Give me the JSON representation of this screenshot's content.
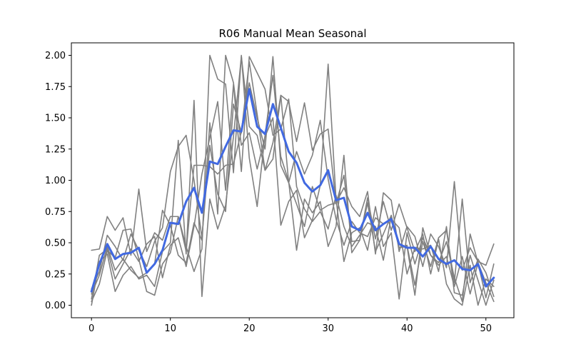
{
  "chart_data": {
    "type": "line",
    "title": "R06 Manual Mean Seasonal",
    "xlabel": "",
    "ylabel": "",
    "xlim": [
      -2.55,
      53.55
    ],
    "ylim": [
      -0.1,
      2.1
    ],
    "xticks": [
      0,
      10,
      20,
      30,
      40,
      50
    ],
    "xtick_labels": [
      "0",
      "10",
      "20",
      "30",
      "40",
      "50"
    ],
    "yticks": [
      0.0,
      0.25,
      0.5,
      0.75,
      1.0,
      1.25,
      1.5,
      1.75,
      2.0
    ],
    "ytick_labels": [
      "0.00",
      "0.25",
      "0.50",
      "0.75",
      "1.00",
      "1.25",
      "1.50",
      "1.75",
      "2.00"
    ],
    "grid": false,
    "legend": "none",
    "colors": {
      "background": "#ffffff",
      "individual": "#808080",
      "mean": "#4169e1"
    },
    "x": [
      0,
      1,
      2,
      3,
      4,
      5,
      6,
      7,
      8,
      9,
      10,
      11,
      12,
      13,
      14,
      15,
      16,
      17,
      18,
      19,
      20,
      21,
      22,
      23,
      24,
      25,
      26,
      27,
      28,
      29,
      30,
      31,
      32,
      33,
      34,
      35,
      36,
      37,
      38,
      39,
      40,
      41,
      42,
      43,
      44,
      45,
      46,
      47,
      48,
      49,
      50,
      51
    ],
    "series": [
      {
        "role": "individual",
        "values": [
          0.44,
          0.45,
          0.71,
          0.6,
          0.7,
          0.4,
          0.93,
          0.43,
          0.58,
          0.52,
          0.71,
          0.71,
          0.43,
          1.12,
          1.12,
          1.11,
          1.05,
          1.12,
          1.13,
          1.39,
          1.78,
          1.5,
          1.25,
          1.99,
          1.12,
          0.98,
          0.81,
          0.63,
          0.95,
          0.76,
          0.8,
          0.82,
          0.94,
          0.79,
          0.71,
          0.91,
          0.41,
          0.9,
          0.84,
          0.43,
          0.63,
          0.55,
          0.31,
          0.57,
          0.47,
          0.3,
          0.99,
          0.28,
          0.46,
          0.35,
          0.32,
          0.49
        ]
      },
      {
        "role": "individual",
        "values": [
          0.05,
          0.4,
          0.45,
          0.21,
          0.33,
          0.45,
          0.35,
          0.49,
          0.55,
          0.22,
          0.48,
          0.54,
          0.31,
          0.63,
          1.05,
          1.34,
          1.63,
          0.92,
          1.77,
          1.07,
          1.99,
          1.86,
          1.73,
          1.36,
          1.41,
          1.65,
          0.95,
          0.77,
          0.67,
          0.75,
          0.61,
          0.88,
          0.63,
          0.47,
          0.56,
          0.66,
          0.63,
          0.36,
          0.71,
          0.46,
          0.47,
          0.08,
          0.62,
          0.4,
          0.34,
          0.51,
          0.22,
          0.03,
          0.57,
          0.34,
          0.06,
          0.33
        ]
      },
      {
        "role": "individual",
        "values": [
          0.09,
          0.24,
          0.47,
          0.28,
          0.37,
          0.28,
          0.22,
          0.26,
          0.33,
          0.76,
          0.64,
          0.4,
          0.34,
          0.66,
          0.52,
          1.46,
          0.73,
          2.0,
          1.78,
          1.28,
          1.38,
          1.09,
          1.35,
          1.5,
          0.64,
          0.83,
          0.92,
          0.54,
          0.68,
          0.96,
          1.93,
          0.85,
          0.35,
          0.58,
          0.62,
          0.44,
          0.79,
          0.47,
          0.58,
          0.05,
          0.58,
          0.33,
          0.54,
          0.4,
          0.32,
          0.39,
          0.15,
          0.39,
          0.09,
          0.34,
          0.18,
          0.03
        ]
      },
      {
        "role": "individual",
        "values": [
          0.03,
          0.17,
          0.44,
          0.38,
          0.6,
          0.61,
          0.37,
          0.11,
          0.08,
          0.33,
          0.42,
          0.71,
          0.47,
          0.27,
          0.45,
          2.0,
          1.81,
          1.77,
          1.06,
          2.0,
          1.18,
          0.79,
          1.36,
          1.84,
          1.19,
          0.99,
          0.44,
          0.85,
          0.74,
          0.83,
          0.47,
          0.63,
          1.2,
          0.42,
          0.52,
          0.86,
          0.53,
          0.83,
          0.6,
          0.81,
          0.62,
          0.43,
          0.57,
          0.25,
          0.53,
          0.17,
          0.05,
          0.0,
          0.32,
          0.0,
          0.21,
          0.15
        ]
      },
      {
        "role": "individual",
        "values": [
          0.0,
          0.35,
          0.41,
          0.11,
          0.24,
          0.31,
          0.21,
          0.24,
          0.15,
          0.43,
          0.5,
          1.32,
          0.41,
          1.64,
          0.07,
          0.85,
          0.61,
          0.8,
          1.35,
          1.99,
          1.43,
          1.36,
          1.08,
          1.17,
          1.68,
          1.63,
          1.31,
          1.62,
          1.24,
          1.37,
          1.41,
          0.81,
          1.04,
          0.51,
          0.52,
          0.82,
          0.43,
          0.57,
          0.72,
          0.46,
          0.48,
          0.16,
          0.51,
          0.31,
          0.54,
          0.6,
          0.18,
          0.85,
          0.18,
          0.37,
          0.26,
          0.07
        ]
      },
      {
        "role": "individual",
        "values": [
          0.13,
          0.27,
          0.56,
          0.47,
          0.36,
          0.57,
          0.44,
          0.31,
          0.51,
          0.62,
          1.07,
          1.27,
          1.36,
          1.0,
          0.54,
          1.28,
          0.89,
          0.75,
          1.61,
          1.38,
          1.95,
          1.53,
          1.08,
          1.3,
          1.68,
          0.98,
          1.23,
          1.05,
          1.2,
          1.48,
          1.01,
          0.69,
          0.48,
          0.67,
          0.58,
          0.55,
          0.7,
          0.65,
          0.69,
          0.62,
          0.25,
          0.46,
          0.45,
          0.48,
          0.27,
          0.63,
          0.1,
          0.08,
          0.4,
          0.2,
          0.0,
          0.2
        ]
      },
      {
        "role": "mean",
        "values": [
          0.11,
          0.33,
          0.49,
          0.37,
          0.41,
          0.42,
          0.46,
          0.26,
          0.33,
          0.44,
          0.66,
          0.65,
          0.83,
          0.94,
          0.74,
          1.15,
          1.13,
          1.27,
          1.4,
          1.39,
          1.73,
          1.43,
          1.37,
          1.61,
          1.42,
          1.23,
          1.14,
          0.98,
          0.91,
          0.96,
          1.08,
          0.84,
          0.86,
          0.63,
          0.6,
          0.74,
          0.6,
          0.65,
          0.69,
          0.49,
          0.46,
          0.46,
          0.39,
          0.47,
          0.37,
          0.33,
          0.36,
          0.29,
          0.28,
          0.33,
          0.15,
          0.22
        ]
      }
    ]
  }
}
